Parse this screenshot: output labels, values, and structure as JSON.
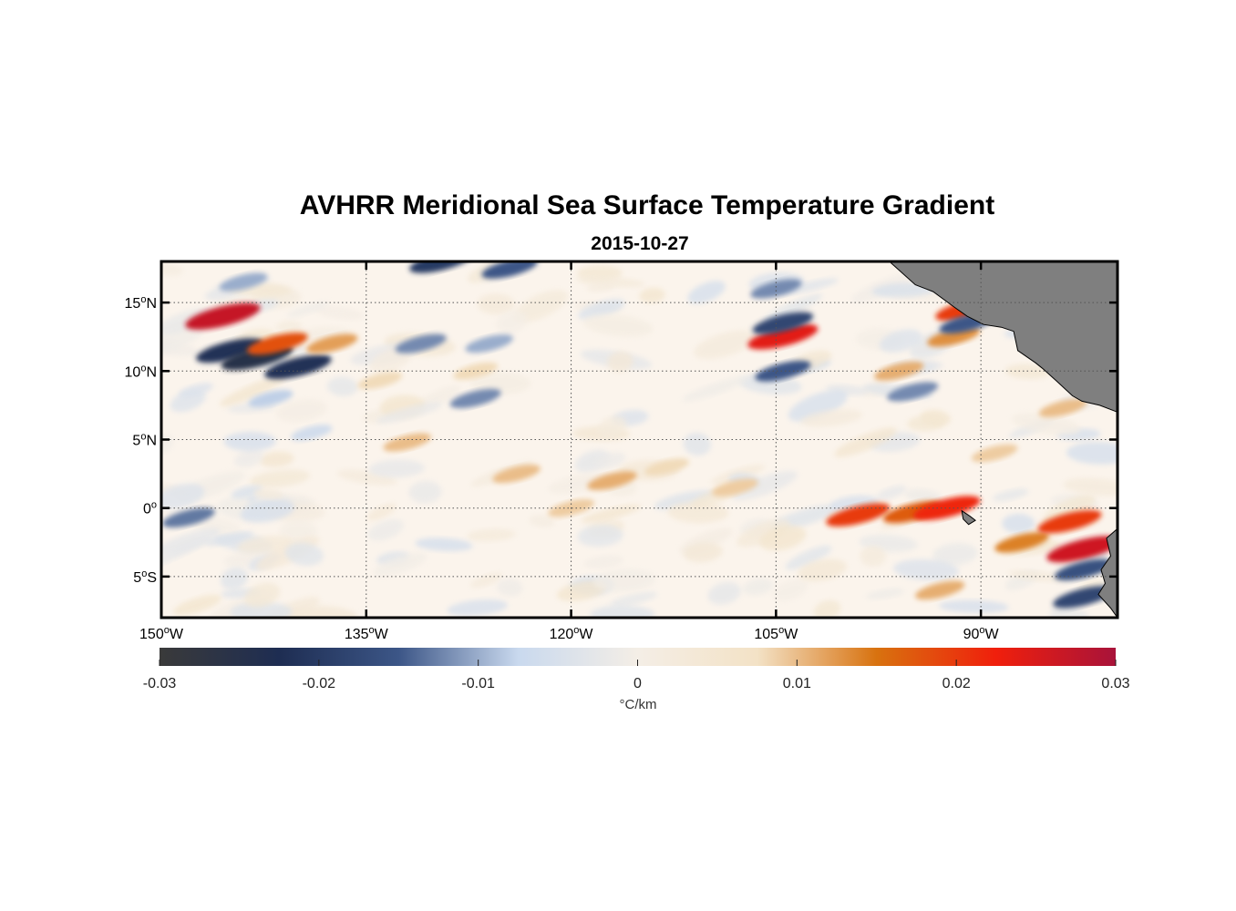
{
  "title": "AVHRR Meridional Sea Surface Temperature Gradient",
  "subtitle": "2015-10-27",
  "colorbar": {
    "ticks": [
      "-0.03",
      "-0.02",
      "-0.01",
      "0",
      "0.01",
      "0.02",
      "0.03"
    ],
    "unit": "°C/km",
    "colors": [
      "#3a3a3a",
      "#1e2d52",
      "#3c5687",
      "#c9d9ee",
      "#f4eee6",
      "#f3e2c6",
      "#d8720f",
      "#f01f0c",
      "#a8133a"
    ]
  },
  "land_color": "#7f7f7f",
  "chart_data": {
    "type": "heatmap",
    "title": "AVHRR Meridional Sea Surface Temperature Gradient",
    "subtitle": "2015-10-27",
    "variable": "meridional SST gradient",
    "units": "°C/km",
    "color_range": [
      -0.03,
      0.03
    ],
    "lon_range": [
      -150,
      -80
    ],
    "lat_range": [
      -8,
      18
    ],
    "x_ticks": [
      {
        "value": -150,
        "deg": "150",
        "hem": "W"
      },
      {
        "value": -135,
        "deg": "135",
        "hem": "W"
      },
      {
        "value": -120,
        "deg": "120",
        "hem": "W"
      },
      {
        "value": -105,
        "deg": "105",
        "hem": "W"
      },
      {
        "value": -90,
        "deg": "90",
        "hem": "W"
      }
    ],
    "y_ticks": [
      {
        "value": 15,
        "deg": "15",
        "hem": "N"
      },
      {
        "value": 10,
        "deg": "10",
        "hem": "N"
      },
      {
        "value": 5,
        "deg": "5",
        "hem": "N"
      },
      {
        "value": 0,
        "deg": "0",
        "hem": ""
      },
      {
        "value": -5,
        "deg": "5",
        "hem": "S"
      }
    ],
    "features": [
      {
        "lon": -145.5,
        "lat": 14.0,
        "value": 0.027
      },
      {
        "lon": -145,
        "lat": 11.5,
        "value": -0.022
      },
      {
        "lon": -143,
        "lat": 11.0,
        "value": -0.025
      },
      {
        "lon": -140,
        "lat": 10.3,
        "value": -0.022
      },
      {
        "lon": -141.5,
        "lat": 12.0,
        "value": 0.018
      },
      {
        "lon": -137.5,
        "lat": 12.0,
        "value": 0.012
      },
      {
        "lon": -134,
        "lat": 9.3,
        "value": 0.008
      },
      {
        "lon": -132,
        "lat": 4.8,
        "value": 0.01
      },
      {
        "lon": -131,
        "lat": 12.0,
        "value": -0.012
      },
      {
        "lon": -129.5,
        "lat": 18.0,
        "value": -0.02
      },
      {
        "lon": -124.5,
        "lat": 17.5,
        "value": -0.015
      },
      {
        "lon": -127,
        "lat": 8.0,
        "value": -0.012
      },
      {
        "lon": -126,
        "lat": 12.0,
        "value": -0.01
      },
      {
        "lon": -124,
        "lat": 2.5,
        "value": 0.01
      },
      {
        "lon": -127,
        "lat": 10.0,
        "value": 0.008
      },
      {
        "lon": -117,
        "lat": 2.0,
        "value": 0.011
      },
      {
        "lon": -120,
        "lat": 0.0,
        "value": 0.009
      },
      {
        "lon": -113,
        "lat": 3.0,
        "value": 0.008
      },
      {
        "lon": -108,
        "lat": 1.5,
        "value": 0.009
      },
      {
        "lon": -104.5,
        "lat": 12.5,
        "value": 0.024
      },
      {
        "lon": -104.5,
        "lat": 13.5,
        "value": -0.018
      },
      {
        "lon": -104.5,
        "lat": 10.0,
        "value": -0.015
      },
      {
        "lon": -105,
        "lat": 16.0,
        "value": -0.012
      },
      {
        "lon": -99,
        "lat": -0.5,
        "value": 0.02
      },
      {
        "lon": -95,
        "lat": -0.3,
        "value": 0.017
      },
      {
        "lon": -92.5,
        "lat": 0.0,
        "value": 0.022
      },
      {
        "lon": -92,
        "lat": 12.5,
        "value": 0.013
      },
      {
        "lon": -91,
        "lat": 14.5,
        "value": 0.02
      },
      {
        "lon": -91,
        "lat": 13.5,
        "value": -0.015
      },
      {
        "lon": -95,
        "lat": 8.5,
        "value": -0.012
      },
      {
        "lon": -96,
        "lat": 10.0,
        "value": 0.011
      },
      {
        "lon": -87,
        "lat": -2.5,
        "value": 0.014
      },
      {
        "lon": -83.5,
        "lat": -1.0,
        "value": 0.02
      },
      {
        "lon": -82.5,
        "lat": -3.0,
        "value": 0.026
      },
      {
        "lon": -82.5,
        "lat": -4.5,
        "value": -0.016
      },
      {
        "lon": -82.5,
        "lat": -6.5,
        "value": -0.018
      },
      {
        "lon": -84,
        "lat": 7.3,
        "value": 0.01
      },
      {
        "lon": -89,
        "lat": 4.0,
        "value": 0.009
      },
      {
        "lon": -93,
        "lat": -6.0,
        "value": 0.011
      },
      {
        "lon": -139,
        "lat": 5.5,
        "value": -0.006
      },
      {
        "lon": -148,
        "lat": -0.7,
        "value": -0.013
      },
      {
        "lon": -142,
        "lat": 8.0,
        "value": -0.008
      },
      {
        "lon": -144,
        "lat": 16.5,
        "value": -0.01
      }
    ]
  }
}
